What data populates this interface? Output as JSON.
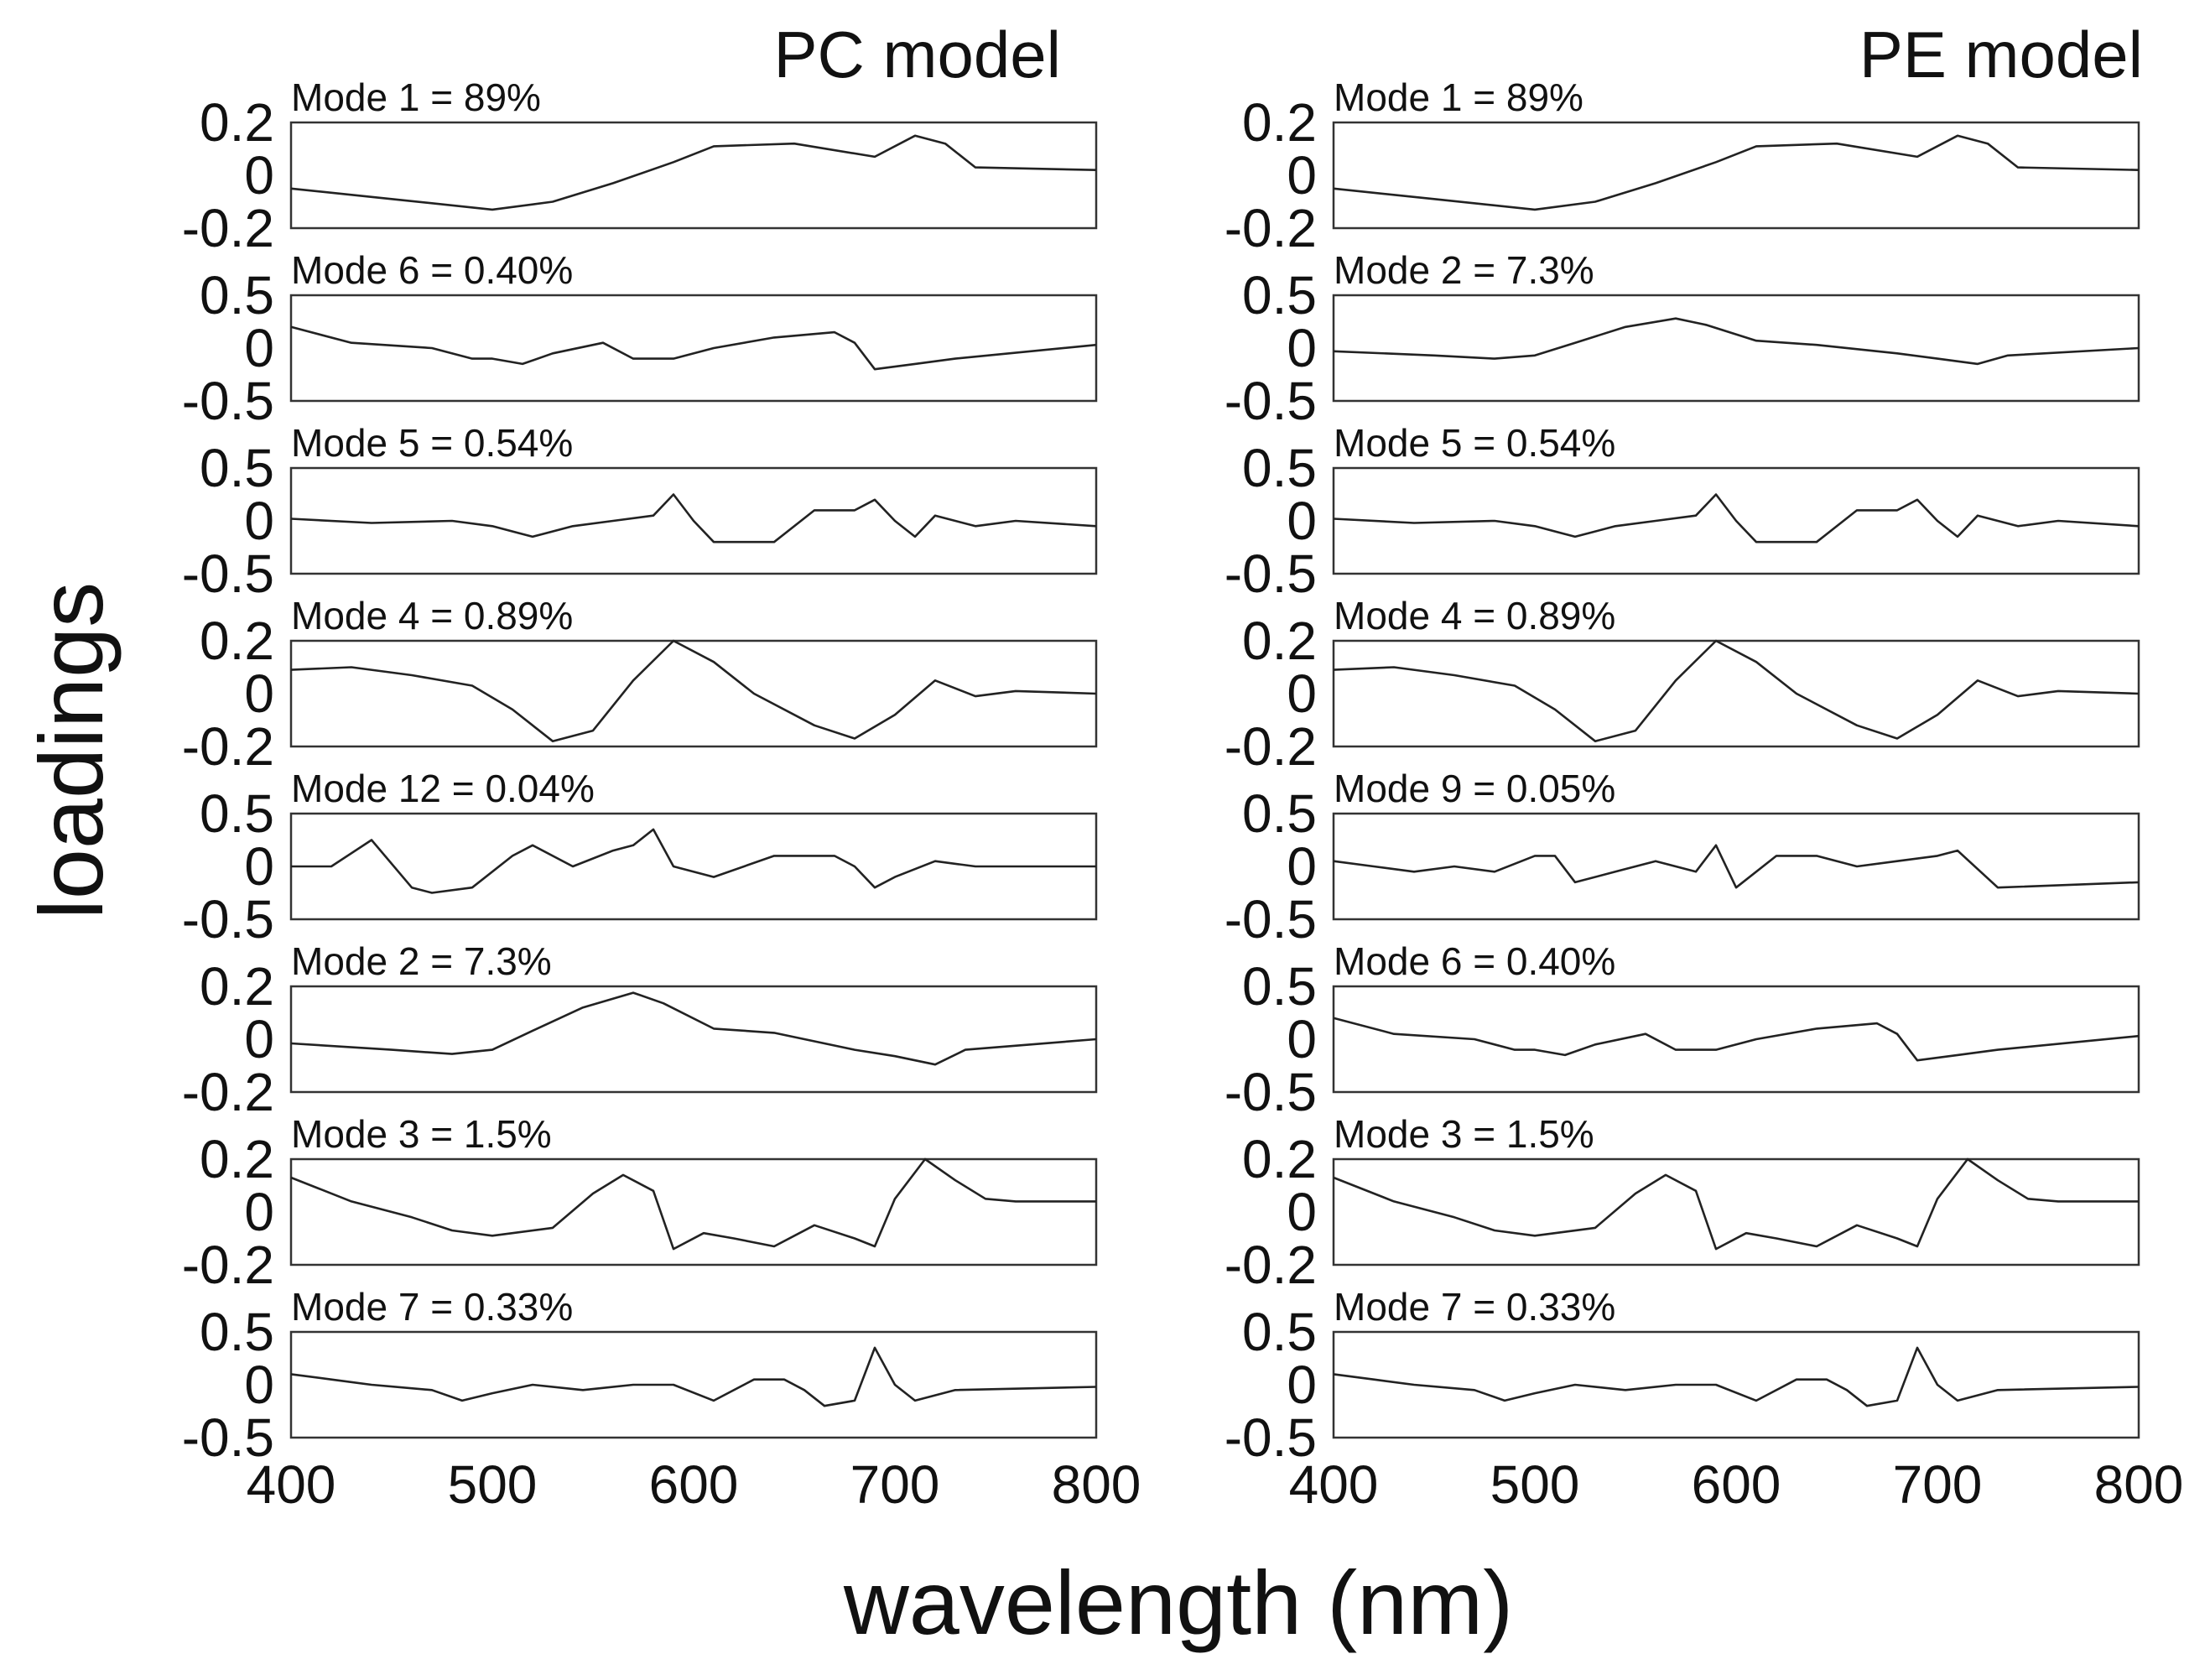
{
  "figure": {
    "ylabel": "loadings",
    "xlabel": "wavelength (nm)",
    "columns": [
      {
        "title": "PC model"
      },
      {
        "title": "PE model"
      }
    ]
  },
  "chart_data": [
    {
      "type": "line",
      "title": "PC model",
      "xlabel": "wavelength (nm)",
      "ylabel": "loadings",
      "xlim": [
        400,
        800
      ],
      "x_ticks": [
        "400",
        "500",
        "600",
        "700",
        "800"
      ],
      "panels": [
        {
          "label": "Mode 1 = 89%",
          "ylim": [
            -0.2,
            0.2
          ],
          "y_ticks": [
            "0.2",
            "0",
            "-0.2"
          ],
          "x": [
            400,
            450,
            500,
            530,
            560,
            590,
            610,
            650,
            690,
            710,
            725,
            740,
            800
          ],
          "y": [
            -0.05,
            -0.09,
            -0.13,
            -0.1,
            -0.03,
            0.05,
            0.11,
            0.12,
            0.07,
            0.15,
            0.12,
            0.03,
            0.02
          ]
        },
        {
          "label": "Mode 6 = 0.40%",
          "ylim": [
            -0.5,
            0.5
          ],
          "y_ticks": [
            "0.5",
            "0",
            "-0.5"
          ],
          "x": [
            400,
            430,
            470,
            490,
            500,
            515,
            530,
            555,
            570,
            590,
            610,
            640,
            670,
            680,
            690,
            710,
            730,
            800
          ],
          "y": [
            0.2,
            0.05,
            0.0,
            -0.1,
            -0.1,
            -0.15,
            -0.05,
            0.05,
            -0.1,
            -0.1,
            0.0,
            0.1,
            0.15,
            0.05,
            -0.2,
            -0.15,
            -0.1,
            0.03
          ]
        },
        {
          "label": "Mode 5 = 0.54%",
          "ylim": [
            -0.5,
            0.5
          ],
          "y_ticks": [
            "0.5",
            "0",
            "-0.5"
          ],
          "x": [
            400,
            440,
            480,
            500,
            520,
            540,
            560,
            580,
            590,
            600,
            610,
            640,
            660,
            670,
            680,
            690,
            700,
            710,
            720,
            740,
            760,
            800
          ],
          "y": [
            0.02,
            -0.02,
            0.0,
            -0.05,
            -0.15,
            -0.05,
            0.0,
            0.05,
            0.25,
            0.0,
            -0.2,
            -0.2,
            0.1,
            0.1,
            0.1,
            0.2,
            0.0,
            -0.15,
            0.05,
            -0.05,
            0.0,
            -0.05
          ]
        },
        {
          "label": "Mode 4 = 0.89%",
          "ylim": [
            -0.2,
            0.2
          ],
          "y_ticks": [
            "0.2",
            "0",
            "-0.2"
          ],
          "x": [
            400,
            430,
            460,
            490,
            510,
            530,
            550,
            570,
            590,
            610,
            630,
            660,
            680,
            700,
            720,
            740,
            760,
            800
          ],
          "y": [
            0.09,
            0.1,
            0.07,
            0.03,
            -0.06,
            -0.18,
            -0.14,
            0.05,
            0.2,
            0.12,
            0.0,
            -0.12,
            -0.17,
            -0.08,
            0.05,
            -0.01,
            0.01,
            0.0
          ]
        },
        {
          "label": "Mode 12 = 0.04%",
          "ylim": [
            -0.5,
            0.5
          ],
          "y_ticks": [
            "0.5",
            "0",
            "-0.5"
          ],
          "x": [
            400,
            420,
            440,
            460,
            470,
            490,
            510,
            520,
            540,
            560,
            570,
            580,
            590,
            610,
            640,
            670,
            680,
            690,
            700,
            720,
            740,
            800
          ],
          "y": [
            0.0,
            0.0,
            0.25,
            -0.2,
            -0.25,
            -0.2,
            0.1,
            0.2,
            0.0,
            0.15,
            0.2,
            0.35,
            0.0,
            -0.1,
            0.1,
            0.1,
            0.0,
            -0.2,
            -0.1,
            0.05,
            0.0,
            0.0
          ]
        },
        {
          "label": "Mode 2 = 7.3%",
          "ylim": [
            -0.25,
            0.25
          ],
          "y_ticks": [
            "0.2",
            "0",
            "-0.2"
          ],
          "x": [
            400,
            450,
            480,
            500,
            520,
            545,
            570,
            585,
            610,
            640,
            680,
            700,
            720,
            735,
            800
          ],
          "y": [
            -0.02,
            -0.05,
            -0.07,
            -0.05,
            0.04,
            0.15,
            0.22,
            0.17,
            0.05,
            0.03,
            -0.05,
            -0.08,
            -0.12,
            -0.05,
            0.0
          ]
        },
        {
          "label": "Mode 3 = 1.5%",
          "ylim": [
            -0.2,
            0.2
          ],
          "y_ticks": [
            "0.2",
            "0",
            "-0.2"
          ],
          "x": [
            400,
            430,
            460,
            480,
            500,
            530,
            550,
            565,
            580,
            590,
            605,
            620,
            640,
            660,
            680,
            690,
            700,
            715,
            730,
            745,
            760,
            800
          ],
          "y": [
            0.13,
            0.04,
            -0.02,
            -0.07,
            -0.09,
            -0.06,
            0.07,
            0.14,
            0.08,
            -0.14,
            -0.08,
            -0.1,
            -0.13,
            -0.05,
            -0.1,
            -0.13,
            0.05,
            0.2,
            0.12,
            0.05,
            0.04,
            0.04
          ]
        },
        {
          "label": "Mode 7 = 0.33%",
          "ylim": [
            -0.5,
            0.5
          ],
          "y_ticks": [
            "0.5",
            "0",
            "-0.5"
          ],
          "x": [
            400,
            420,
            440,
            470,
            485,
            500,
            520,
            545,
            570,
            590,
            610,
            630,
            645,
            655,
            665,
            680,
            690,
            700,
            710,
            730,
            800
          ],
          "y": [
            0.1,
            0.05,
            0.0,
            -0.05,
            -0.15,
            -0.08,
            0.0,
            -0.05,
            0.0,
            0.0,
            -0.15,
            0.05,
            0.05,
            -0.05,
            -0.2,
            -0.15,
            0.35,
            0.0,
            -0.15,
            -0.05,
            -0.02
          ]
        }
      ]
    },
    {
      "type": "line",
      "title": "PE model",
      "xlabel": "wavelength (nm)",
      "ylabel": "loadings",
      "xlim": [
        400,
        800
      ],
      "x_ticks": [
        "400",
        "500",
        "600",
        "700",
        "800"
      ],
      "panels": [
        {
          "label": "Mode 1 = 89%",
          "ylim": [
            -0.2,
            0.2
          ],
          "y_ticks": [
            "0.2",
            "0",
            "-0.2"
          ],
          "x": [
            400,
            450,
            500,
            530,
            560,
            590,
            610,
            650,
            690,
            710,
            725,
            740,
            800
          ],
          "y": [
            -0.05,
            -0.09,
            -0.13,
            -0.1,
            -0.03,
            0.05,
            0.11,
            0.12,
            0.07,
            0.15,
            0.12,
            0.03,
            0.02
          ]
        },
        {
          "label": "Mode 2 = 7.3%",
          "ylim": [
            -0.5,
            0.5
          ],
          "y_ticks": [
            "0.5",
            "0",
            "-0.5"
          ],
          "x": [
            400,
            450,
            480,
            500,
            520,
            545,
            570,
            585,
            610,
            640,
            680,
            700,
            720,
            735,
            800
          ],
          "y": [
            -0.03,
            -0.07,
            -0.1,
            -0.07,
            0.05,
            0.2,
            0.28,
            0.22,
            0.07,
            0.03,
            -0.05,
            -0.1,
            -0.15,
            -0.07,
            0.0
          ]
        },
        {
          "label": "Mode 5 = 0.54%",
          "ylim": [
            -0.5,
            0.5
          ],
          "y_ticks": [
            "0.5",
            "0",
            "-0.5"
          ],
          "x": [
            400,
            440,
            480,
            500,
            520,
            540,
            560,
            580,
            590,
            600,
            610,
            640,
            660,
            670,
            680,
            690,
            700,
            710,
            720,
            740,
            760,
            800
          ],
          "y": [
            0.02,
            -0.02,
            0.0,
            -0.05,
            -0.15,
            -0.05,
            0.0,
            0.05,
            0.25,
            0.0,
            -0.2,
            -0.2,
            0.1,
            0.1,
            0.1,
            0.2,
            0.0,
            -0.15,
            0.05,
            -0.05,
            0.0,
            -0.05
          ]
        },
        {
          "label": "Mode 4 = 0.89%",
          "ylim": [
            -0.2,
            0.2
          ],
          "y_ticks": [
            "0.2",
            "0",
            "-0.2"
          ],
          "x": [
            400,
            430,
            460,
            490,
            510,
            530,
            550,
            570,
            590,
            610,
            630,
            660,
            680,
            700,
            720,
            740,
            760,
            800
          ],
          "y": [
            0.09,
            0.1,
            0.07,
            0.03,
            -0.06,
            -0.18,
            -0.14,
            0.05,
            0.2,
            0.12,
            0.0,
            -0.12,
            -0.17,
            -0.08,
            0.05,
            -0.01,
            0.01,
            0.0
          ]
        },
        {
          "label": "Mode 9 = 0.05%",
          "ylim": [
            -0.5,
            0.5
          ],
          "y_ticks": [
            "0.5",
            "0",
            "-0.5"
          ],
          "x": [
            400,
            420,
            440,
            460,
            480,
            500,
            510,
            520,
            540,
            560,
            580,
            590,
            600,
            620,
            640,
            660,
            680,
            700,
            710,
            730,
            800
          ],
          "y": [
            0.05,
            0.0,
            -0.05,
            0.0,
            -0.05,
            0.1,
            0.1,
            -0.15,
            -0.05,
            0.05,
            -0.05,
            0.2,
            -0.2,
            0.1,
            0.1,
            0.0,
            0.05,
            0.1,
            0.15,
            -0.2,
            -0.15
          ]
        },
        {
          "label": "Mode 6 = 0.40%",
          "ylim": [
            -0.5,
            0.5
          ],
          "y_ticks": [
            "0.5",
            "0",
            "-0.5"
          ],
          "x": [
            400,
            430,
            470,
            490,
            500,
            515,
            530,
            555,
            570,
            590,
            610,
            640,
            670,
            680,
            690,
            710,
            730,
            800
          ],
          "y": [
            0.2,
            0.05,
            0.0,
            -0.1,
            -0.1,
            -0.15,
            -0.05,
            0.05,
            -0.1,
            -0.1,
            0.0,
            0.1,
            0.15,
            0.05,
            -0.2,
            -0.15,
            -0.1,
            0.03
          ]
        },
        {
          "label": "Mode 3 = 1.5%",
          "ylim": [
            -0.2,
            0.2
          ],
          "y_ticks": [
            "0.2",
            "0",
            "-0.2"
          ],
          "x": [
            400,
            430,
            460,
            480,
            500,
            530,
            550,
            565,
            580,
            590,
            605,
            620,
            640,
            660,
            680,
            690,
            700,
            715,
            730,
            745,
            760,
            800
          ],
          "y": [
            0.13,
            0.04,
            -0.02,
            -0.07,
            -0.09,
            -0.06,
            0.07,
            0.14,
            0.08,
            -0.14,
            -0.08,
            -0.1,
            -0.13,
            -0.05,
            -0.1,
            -0.13,
            0.05,
            0.2,
            0.12,
            0.05,
            0.04,
            0.04
          ]
        },
        {
          "label": "Mode 7 = 0.33%",
          "ylim": [
            -0.5,
            0.5
          ],
          "y_ticks": [
            "0.5",
            "0",
            "-0.5"
          ],
          "x": [
            400,
            420,
            440,
            470,
            485,
            500,
            520,
            545,
            570,
            590,
            610,
            630,
            645,
            655,
            665,
            680,
            690,
            700,
            710,
            730,
            800
          ],
          "y": [
            0.1,
            0.05,
            0.0,
            -0.05,
            -0.15,
            -0.08,
            0.0,
            -0.05,
            0.0,
            0.0,
            -0.15,
            0.05,
            0.05,
            -0.05,
            -0.2,
            -0.15,
            0.35,
            0.0,
            -0.15,
            -0.05,
            -0.02
          ]
        }
      ]
    }
  ]
}
